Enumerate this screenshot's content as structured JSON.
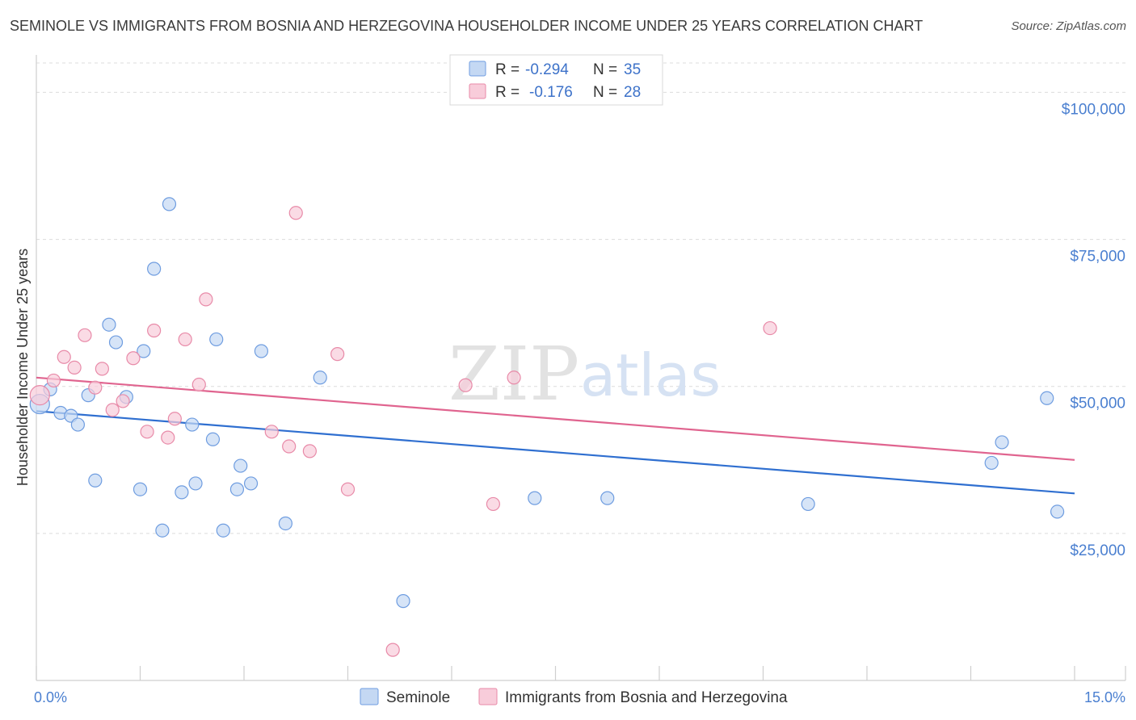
{
  "chart_data": {
    "type": "scatter",
    "title": "SEMINOLE VS IMMIGRANTS FROM BOSNIA AND HERZEGOVINA HOUSEHOLDER INCOME UNDER 25 YEARS CORRELATION CHART",
    "source": "Source: ZipAtlas.com",
    "ylabel": "Householder Income Under 25 years",
    "xlabel": "",
    "xlim": [
      0,
      15
    ],
    "ylim": [
      0,
      105000
    ],
    "x_tick_labels": [
      {
        "value": 0,
        "label": "0.0%"
      },
      {
        "value": 15,
        "label": "15.0%"
      }
    ],
    "y_ticks": [
      {
        "value": 25000,
        "label": "$25,000"
      },
      {
        "value": 50000,
        "label": "$50,000"
      },
      {
        "value": 75000,
        "label": "$75,000"
      },
      {
        "value": 100000,
        "label": "$100,000"
      }
    ],
    "watermark": {
      "part1": "ZIP",
      "part2": "atlas"
    },
    "legend_top": [
      {
        "r_label": "R =",
        "r_value": "-0.294",
        "n_label": "N =",
        "n_value": "35"
      },
      {
        "r_label": "R =",
        "r_value": "-0.176",
        "n_label": "N =",
        "n_value": "28"
      }
    ],
    "series": [
      {
        "name": "Seminole",
        "color": "#6f9de0",
        "fill": "#c4d8f3",
        "trend": {
          "x0": 0,
          "y0": 45800,
          "x1": 15,
          "y1": 31800
        },
        "points": [
          [
            0.05,
            47000
          ],
          [
            0.2,
            49500
          ],
          [
            0.35,
            45500
          ],
          [
            0.5,
            45000
          ],
          [
            0.6,
            43500
          ],
          [
            0.75,
            48500
          ],
          [
            0.85,
            34000
          ],
          [
            1.05,
            60500
          ],
          [
            1.15,
            57500
          ],
          [
            1.3,
            48200
          ],
          [
            1.5,
            32500
          ],
          [
            1.55,
            56000
          ],
          [
            1.7,
            70000
          ],
          [
            1.82,
            25500
          ],
          [
            1.92,
            81000
          ],
          [
            2.1,
            32000
          ],
          [
            2.25,
            43500
          ],
          [
            2.3,
            33500
          ],
          [
            2.55,
            41000
          ],
          [
            2.6,
            58000
          ],
          [
            2.7,
            25500
          ],
          [
            2.9,
            32500
          ],
          [
            2.95,
            36500
          ],
          [
            3.1,
            33500
          ],
          [
            3.25,
            56000
          ],
          [
            3.6,
            26700
          ],
          [
            4.1,
            51500
          ],
          [
            5.3,
            13500
          ],
          [
            7.2,
            31000
          ],
          [
            8.25,
            31000
          ],
          [
            11.15,
            30000
          ],
          [
            13.8,
            37000
          ],
          [
            13.95,
            40500
          ],
          [
            14.6,
            48000
          ],
          [
            14.75,
            28700
          ]
        ]
      },
      {
        "name": "Immigrants from Bosnia and Herzegovina",
        "color": "#e88aa8",
        "fill": "#f8ccda",
        "trend": {
          "x0": 0,
          "y0": 51500,
          "x1": 15,
          "y1": 37500
        },
        "points": [
          [
            0.05,
            48500
          ],
          [
            0.25,
            51000
          ],
          [
            0.4,
            55000
          ],
          [
            0.55,
            53200
          ],
          [
            0.7,
            58700
          ],
          [
            0.85,
            49800
          ],
          [
            0.95,
            53000
          ],
          [
            1.1,
            46000
          ],
          [
            1.25,
            47500
          ],
          [
            1.4,
            54800
          ],
          [
            1.6,
            42300
          ],
          [
            1.7,
            59500
          ],
          [
            1.9,
            41300
          ],
          [
            2.0,
            44500
          ],
          [
            2.15,
            58000
          ],
          [
            2.35,
            50300
          ],
          [
            2.45,
            64800
          ],
          [
            3.4,
            42300
          ],
          [
            3.65,
            39800
          ],
          [
            3.75,
            79500
          ],
          [
            3.95,
            39000
          ],
          [
            4.35,
            55500
          ],
          [
            4.5,
            32500
          ],
          [
            5.15,
            5200
          ],
          [
            6.2,
            50200
          ],
          [
            6.6,
            30000
          ],
          [
            6.9,
            51500
          ],
          [
            10.6,
            59900
          ]
        ]
      }
    ]
  }
}
